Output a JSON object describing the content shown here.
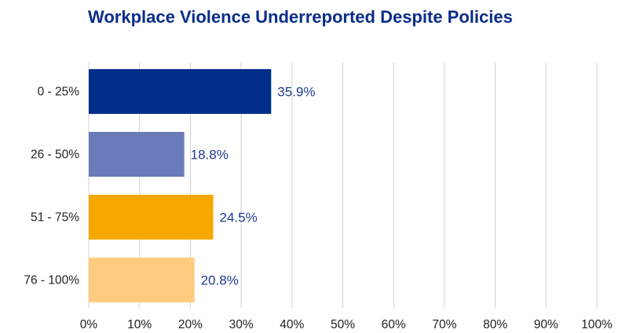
{
  "chart_data": {
    "type": "bar",
    "orientation": "horizontal",
    "title": "Workplace Violence Underreported Despite Policies",
    "categories": [
      "0 - 25%",
      "26 - 50%",
      "51 - 75%",
      "76 - 100%"
    ],
    "values": [
      35.9,
      18.8,
      24.5,
      20.8
    ],
    "value_labels": [
      "35.9%",
      "18.8%",
      "24.5%",
      "20.8%"
    ],
    "bar_colors": [
      "#002e8a",
      "#6a7bba",
      "#f6a800",
      "#ffcc7f"
    ],
    "xlim": [
      0,
      100
    ],
    "x_ticks": [
      0,
      10,
      20,
      30,
      40,
      50,
      60,
      70,
      80,
      90,
      100
    ],
    "x_tick_labels": [
      "0%",
      "10%",
      "20%",
      "30%",
      "40%",
      "50%",
      "60%",
      "70%",
      "80%",
      "90%",
      "100%"
    ],
    "grid": true,
    "xlabel": "",
    "ylabel": "",
    "legend": "none"
  },
  "colors": {
    "title": "#0b2d8a",
    "data_label": "#1f3a8f",
    "grid": "#d0d0d0",
    "tick_text": "#222222"
  }
}
